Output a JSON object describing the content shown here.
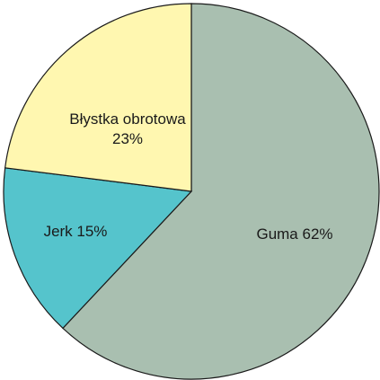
{
  "chart_data": {
    "type": "pie",
    "slices": [
      {
        "label": "Guma 62%",
        "lines": [
          "Guma 62%"
        ],
        "value": 62,
        "color": "#a9bfb0"
      },
      {
        "label": "Jerk 15%",
        "lines": [
          "Jerk 15%"
        ],
        "value": 15,
        "color": "#55c4cc"
      },
      {
        "label": "Błystka obrotowa 23%",
        "lines": [
          "Błystka obrotowa",
          "23%"
        ],
        "value": 23,
        "color": "#fff7b0"
      }
    ],
    "start_angle": "12 o'clock",
    "direction": "clockwise",
    "legend": "none"
  }
}
